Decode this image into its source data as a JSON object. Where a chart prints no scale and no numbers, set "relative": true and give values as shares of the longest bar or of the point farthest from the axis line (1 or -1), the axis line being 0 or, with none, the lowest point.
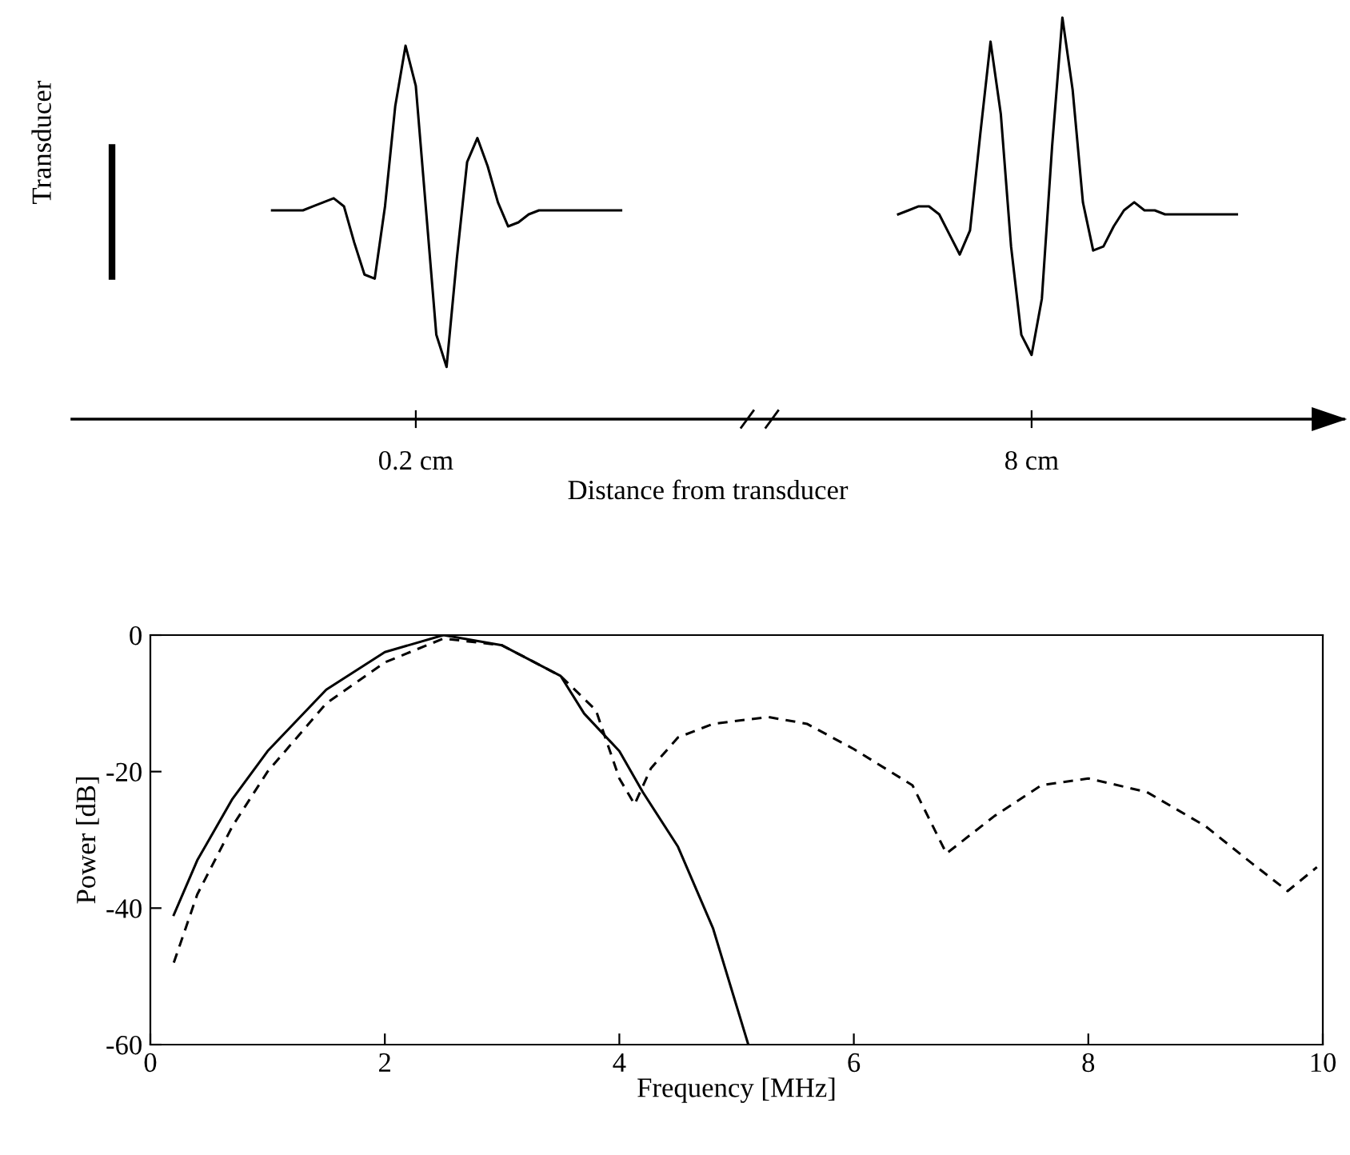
{
  "chart_data": [
    {
      "type": "line",
      "relative": true,
      "xlabel": "Distance from transducer",
      "ylabel": "Transducer",
      "tick_labels": "x",
      "categories": [
        null,
        null,
        null,
        null,
        null,
        null,
        null,
        null,
        null,
        null,
        null,
        null,
        null,
        null,
        "0.2 cm",
        null,
        null,
        null,
        null,
        null,
        null,
        null,
        null,
        null,
        null,
        null,
        null,
        null,
        null,
        null,
        null,
        null,
        null,
        null,
        null,
        null,
        null,
        null,
        null,
        null,
        null,
        null,
        null,
        null,
        null,
        null,
        null,
        null,
        null,
        null,
        null,
        null,
        null,
        null,
        null,
        null,
        null,
        null,
        null,
        null,
        null,
        null,
        null,
        null,
        null,
        null,
        null,
        null,
        null,
        null,
        null,
        null,
        null,
        null,
        "8 cm",
        null,
        null,
        null,
        null,
        null,
        null,
        null,
        null,
        null,
        null,
        null,
        null,
        null,
        null,
        null,
        null,
        null,
        null,
        null,
        null
      ],
      "series": [
        {
          "color": "#000000",
          "line_style": "solid",
          "values": [
            0.52,
            0.52,
            0.52,
            0.52,
            0.53,
            0.54,
            0.55,
            0.53,
            0.44,
            0.36,
            0.35,
            0.53,
            0.78,
            0.93,
            0.83,
            0.52,
            0.21,
            0.13,
            0.4,
            0.64,
            0.7,
            0.63,
            0.54,
            0.48,
            0.49,
            0.51,
            0.52,
            0.52,
            0.52,
            0.52,
            0.52,
            0.52,
            0.52,
            0.52,
            0.52,
            null,
            null,
            null,
            null,
            null,
            null,
            null,
            null,
            null,
            null,
            null,
            null,
            null,
            null,
            null,
            null,
            null,
            null,
            null,
            null,
            null,
            null,
            null,
            null,
            null,
            null,
            0.51,
            0.52,
            0.53,
            0.53,
            0.51,
            0.46,
            0.41,
            0.47,
            0.71,
            0.94,
            0.76,
            0.43,
            0.21,
            0.16,
            0.3,
            0.68,
            1,
            0.82,
            0.54,
            0.42,
            0.43,
            0.48,
            0.52,
            0.54,
            0.52,
            0.52,
            0.51,
            0.51,
            0.51,
            0.51,
            0.51,
            0.51,
            0.51,
            0.51
          ]
        }
      ]
    },
    {
      "type": "line",
      "xlabel": "Frequency [MHz]",
      "ylabel": "Power [dB]",
      "xlim": [
        0,
        10
      ],
      "ylim": [
        -60,
        0
      ],
      "xticks": [
        0,
        2,
        4,
        6,
        8,
        10
      ],
      "yticks": [
        -60,
        -40,
        -20,
        0
      ],
      "grid": false,
      "legend": false,
      "series": [
        {
          "color": "#000000",
          "line_style": "solid",
          "x": [
            0.2,
            0.4,
            0.7,
            1.0,
            1.5,
            2.0,
            2.5,
            3.0,
            3.5,
            3.7,
            4.0,
            4.2,
            4.5,
            4.8,
            5.1
          ],
          "values": [
            -41,
            -33,
            -24,
            -17,
            -8,
            -2.5,
            0,
            -1.5,
            -6,
            -11.5,
            -17,
            -23,
            -31,
            -43,
            -60
          ]
        },
        {
          "color": "#000000",
          "line_style": "dashed",
          "x": [
            0.2,
            0.4,
            0.7,
            1.0,
            1.5,
            2.0,
            2.5,
            3.0,
            3.5,
            3.8,
            4.0,
            4.13,
            4.27,
            4.5,
            4.8,
            5.27,
            5.6,
            6.0,
            6.5,
            6.79,
            7.2,
            7.6,
            8.0,
            8.5,
            9.0,
            9.4,
            9.7,
            9.95
          ],
          "values": [
            -48,
            -38,
            -28,
            -20,
            -10,
            -4,
            -0.5,
            -1.5,
            -6,
            -11,
            -21,
            -24.8,
            -19.5,
            -15,
            -13,
            -12,
            -13,
            -16.7,
            -22,
            -32,
            -26.5,
            -22,
            -21,
            -23,
            -28,
            -33.5,
            -37.5,
            -34
          ]
        }
      ]
    }
  ]
}
